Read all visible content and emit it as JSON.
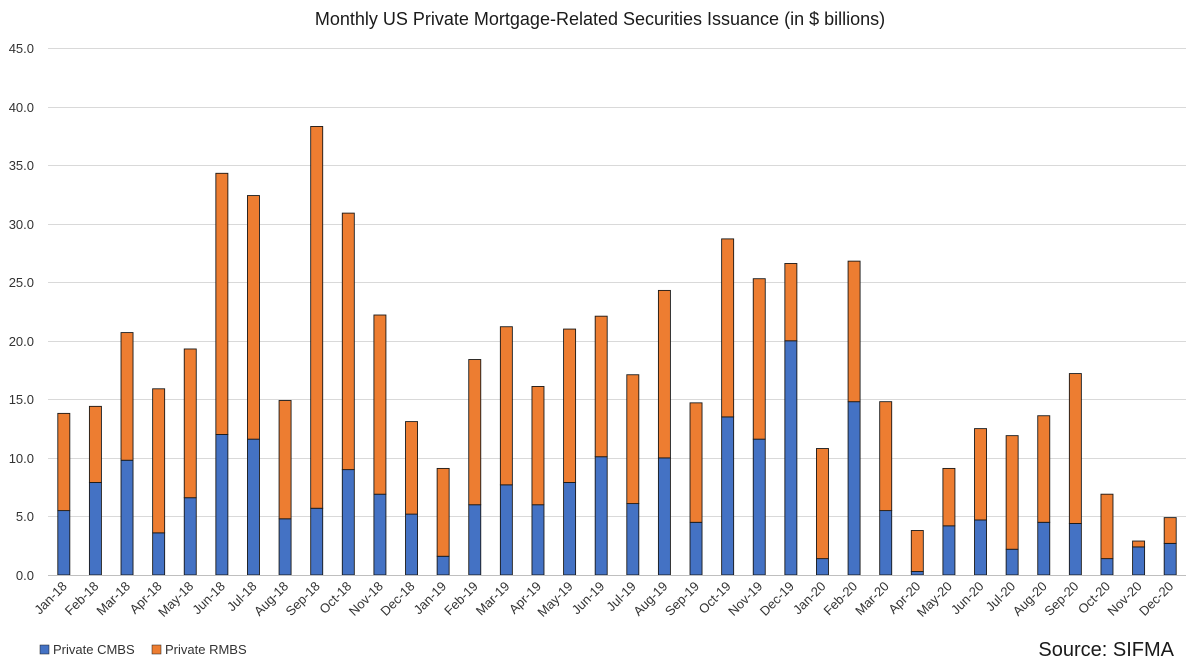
{
  "chart_data": {
    "type": "bar",
    "stacked": true,
    "title": "Monthly US Private Mortgage-Related Securities Issuance (in $ billions)",
    "xlabel": "",
    "ylabel": "",
    "ylim": [
      0,
      45
    ],
    "yticks": [
      "0.0",
      "5.0",
      "10.0",
      "15.0",
      "20.0",
      "25.0",
      "30.0",
      "35.0",
      "40.0",
      "45.0"
    ],
    "grid": true,
    "legend_position": "bottom-left",
    "source": "Source: SIFMA",
    "categories": [
      "Jan-18",
      "Feb-18",
      "Mar-18",
      "Apr-18",
      "May-18",
      "Jun-18",
      "Jul-18",
      "Aug-18",
      "Sep-18",
      "Oct-18",
      "Nov-18",
      "Dec-18",
      "Jan-19",
      "Feb-19",
      "Mar-19",
      "Apr-19",
      "May-19",
      "Jun-19",
      "Jul-19",
      "Aug-19",
      "Sep-19",
      "Oct-19",
      "Nov-19",
      "Dec-19",
      "Jan-20",
      "Feb-20",
      "Mar-20",
      "Apr-20",
      "May-20",
      "Jun-20",
      "Jul-20",
      "Aug-20",
      "Sep-20",
      "Oct-20",
      "Nov-20",
      "Dec-20"
    ],
    "series": [
      {
        "name": "Private CMBS",
        "color": "#4472C4",
        "values": [
          5.5,
          7.9,
          9.8,
          3.6,
          6.6,
          12.0,
          11.6,
          4.8,
          5.7,
          9.0,
          6.9,
          5.2,
          1.6,
          6.0,
          7.7,
          6.0,
          7.9,
          10.1,
          6.1,
          10.0,
          4.5,
          13.5,
          11.6,
          20.0,
          1.4,
          14.8,
          5.5,
          0.3,
          4.2,
          4.7,
          2.2,
          4.5,
          4.4,
          1.4,
          2.4,
          2.7
        ]
      },
      {
        "name": "Private RMBS",
        "color": "#ED7D31",
        "values": [
          8.3,
          6.5,
          10.9,
          12.3,
          12.7,
          22.3,
          20.8,
          10.1,
          32.6,
          21.9,
          15.3,
          7.9,
          7.5,
          12.4,
          13.5,
          10.1,
          13.1,
          12.0,
          11.0,
          14.3,
          10.2,
          15.2,
          13.7,
          6.6,
          9.4,
          12.0,
          9.3,
          3.5,
          4.9,
          7.8,
          9.7,
          9.1,
          12.8,
          5.5,
          0.5,
          2.2
        ]
      }
    ]
  }
}
